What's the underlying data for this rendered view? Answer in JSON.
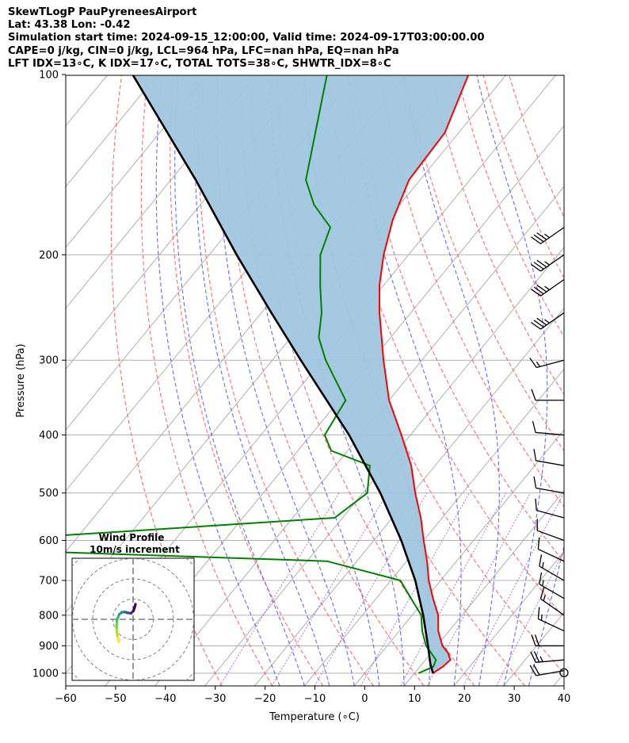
{
  "header": {
    "line1": "SkewTLogP PauPyreneesAirport",
    "line2": "Lat: 43.38   Lon: -0.42",
    "line3": "Simulation start time: 2024-09-15_12:00:00, Valid time: 2024-09-17T03:00:00.00",
    "line4": "CAPE=0 j/kg, CIN=0 j/kg, LCL=964 hPa, LFC=nan hPa, EQ=nan hPa",
    "line5": "LFT IDX=13∘C, K IDX=17∘C, TOTAL TOTS=38∘C, SHWTR_IDX=8∘C"
  },
  "chart_data": {
    "type": "skewt",
    "xlabel": "Temperature (∘C)",
    "ylabel": "Pressure (hPa)",
    "xlim": [
      -60,
      40
    ],
    "ylim": [
      1050,
      100
    ],
    "x_ticks": [
      -60,
      -50,
      -40,
      -30,
      -20,
      -10,
      0,
      10,
      20,
      30,
      40
    ],
    "x_tick_labels": [
      "−60",
      "−50",
      "−40",
      "−30",
      "−20",
      "−10",
      "0",
      "10",
      "20",
      "30",
      "40"
    ],
    "y_ticks": [
      1000,
      900,
      800,
      700,
      600,
      500,
      400,
      300,
      200,
      100
    ],
    "y_tick_labels": [
      "1000",
      "900",
      "800",
      "700",
      "600",
      "500",
      "400",
      "300",
      "200",
      "100"
    ],
    "temperature_series": {
      "name": "Temperature",
      "color": "#ff0000",
      "pressure": [
        1000,
        975,
        950,
        925,
        900,
        850,
        800,
        750,
        700,
        650,
        600,
        550,
        500,
        450,
        400,
        350,
        300,
        275,
        250,
        225,
        200,
        175,
        150,
        125,
        100
      ],
      "temp": [
        13.7,
        14.6,
        15.0,
        13.4,
        11.1,
        7.8,
        5.2,
        1.4,
        -2.4,
        -5.9,
        -10.0,
        -14.3,
        -19.5,
        -24.8,
        -31.8,
        -40.0,
        -47.7,
        -51.8,
        -56.3,
        -60.8,
        -65.0,
        -68.9,
        -72.2,
        -72.8,
        -77.6
      ]
    },
    "dewpoint_series": {
      "name": "Dewpoint",
      "color": "#008000",
      "pressure": [
        1000,
        975,
        950,
        925,
        900,
        850,
        800,
        750,
        700,
        650,
        620,
        600,
        550,
        500,
        450,
        425,
        400,
        350,
        300,
        275,
        250,
        225,
        200,
        180,
        165,
        150,
        100
      ],
      "temp": [
        10.8,
        12.7,
        12.1,
        10.0,
        7.8,
        4.6,
        1.8,
        -3.0,
        -8.1,
        -26.0,
        -101.0,
        -98.0,
        -31.6,
        -29.1,
        -33.1,
        -43.3,
        -47.2,
        -48.7,
        -59.3,
        -64.4,
        -67.9,
        -72.7,
        -77.7,
        -80.2,
        -87.2,
        -92.9,
        -106.0
      ]
    },
    "parcel_series": {
      "name": "Parcel path",
      "color": "#000000",
      "pressure": [
        1000,
        964,
        900,
        800,
        700,
        600,
        500,
        400,
        300,
        250,
        200,
        150,
        100
      ],
      "temp": [
        13.7,
        11.6,
        8.2,
        2.2,
        -5.1,
        -14.5,
        -26.5,
        -42.3,
        -64.3,
        -78.0,
        -94.5,
        -115.0,
        -145.0
      ]
    },
    "shaded_area": {
      "between": [
        "Temperature",
        "Parcel path"
      ],
      "color": "#a1c6e0",
      "label": "negative area"
    },
    "dry_adiabats_theta_c": [
      -30,
      -20,
      -10,
      0,
      10,
      20,
      30,
      40,
      50,
      60,
      70,
      80,
      90,
      100,
      110,
      120
    ],
    "moist_adiabats_start_c": [
      -15,
      -10,
      -5,
      0,
      5,
      10,
      15,
      20,
      25,
      30,
      35
    ],
    "mixing_ratio_lines_gkg": [
      0.4,
      1,
      2,
      4,
      7,
      10,
      16,
      24
    ],
    "wind_barbs": [
      {
        "pressure": 990,
        "direction": 260,
        "speed_kt": 20
      },
      {
        "pressure": 950,
        "direction": 265,
        "speed_kt": 25
      },
      {
        "pressure": 900,
        "direction": 270,
        "speed_kt": 20
      },
      {
        "pressure": 850,
        "direction": 295,
        "speed_kt": 15
      },
      {
        "pressure": 800,
        "direction": 305,
        "speed_kt": 15
      },
      {
        "pressure": 750,
        "direction": 300,
        "speed_kt": 15
      },
      {
        "pressure": 700,
        "direction": 300,
        "speed_kt": 15
      },
      {
        "pressure": 650,
        "direction": 295,
        "speed_kt": 10
      },
      {
        "pressure": 600,
        "direction": 290,
        "speed_kt": 10
      },
      {
        "pressure": 550,
        "direction": 285,
        "speed_kt": 10
      },
      {
        "pressure": 500,
        "direction": 280,
        "speed_kt": 10
      },
      {
        "pressure": 450,
        "direction": 280,
        "speed_kt": 10
      },
      {
        "pressure": 400,
        "direction": 275,
        "speed_kt": 10
      },
      {
        "pressure": 350,
        "direction": 270,
        "speed_kt": 10
      },
      {
        "pressure": 300,
        "direction": 255,
        "speed_kt": 15
      },
      {
        "pressure": 250,
        "direction": 235,
        "speed_kt": 35
      },
      {
        "pressure": 220,
        "direction": 235,
        "speed_kt": 35
      },
      {
        "pressure": 200,
        "direction": 235,
        "speed_kt": 35
      },
      {
        "pressure": 180,
        "direction": 235,
        "speed_kt": 35
      }
    ],
    "hodograph": {
      "title": "Wind Profile",
      "subtitle": "10m/s increment",
      "ring_increment_ms": 10,
      "rings": [
        10,
        20,
        30,
        40
      ],
      "u": [
        -7.0,
        -7.8,
        -8.2,
        -8.0,
        -6.8,
        -5.5,
        -4.0,
        -2.8,
        -1.0,
        0.2,
        0.8,
        1.2
      ],
      "v": [
        -11.2,
        -8.0,
        -4.0,
        -0.2,
        2.5,
        3.5,
        3.6,
        3.2,
        3.0,
        4.2,
        6.0,
        7.5
      ]
    }
  }
}
